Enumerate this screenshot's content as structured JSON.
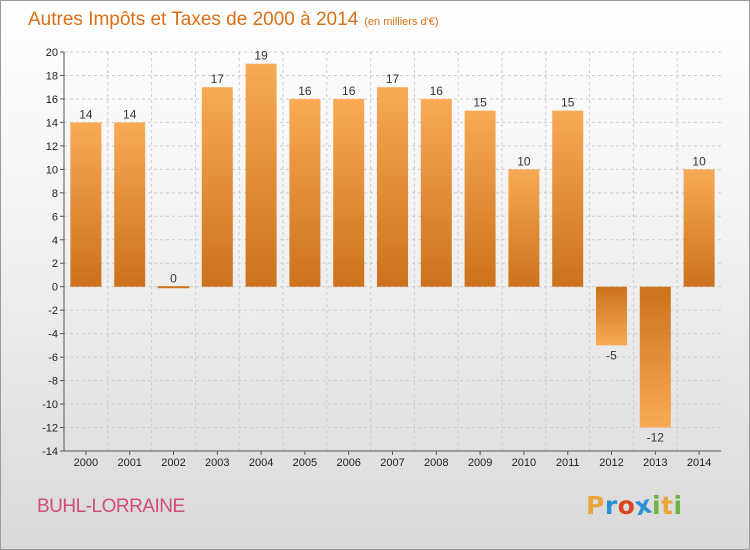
{
  "title": "Autres Impôts et Taxes de 2000 à 2014",
  "subtitle": "(en milliers d'€)",
  "commune": "BUHL-LORRAINE",
  "logo": {
    "text": "Proxiti",
    "letters": [
      {
        "ch": "P",
        "color": "#e8a53a"
      },
      {
        "ch": "r",
        "color": "#2b8fd4"
      },
      {
        "ch": "o",
        "color": "#d9431e"
      },
      {
        "ch": "x",
        "color": "#2b8fd4"
      },
      {
        "ch": "i",
        "color": "#6cb33f"
      },
      {
        "ch": "t",
        "color": "#e8a53a"
      },
      {
        "ch": "i",
        "color": "#6cb33f"
      }
    ]
  },
  "colors": {
    "bar_light": "#f8aa55",
    "bar_dark": "#cc711c",
    "title": "#d96f16",
    "commune": "#d24c78",
    "grid": "#cccccc"
  },
  "chart_data": {
    "type": "bar",
    "categories": [
      "2000",
      "2001",
      "2002",
      "2003",
      "2004",
      "2005",
      "2006",
      "2007",
      "2008",
      "2009",
      "2010",
      "2011",
      "2012",
      "2013",
      "2014"
    ],
    "values": [
      14,
      14,
      0,
      17,
      19,
      16,
      16,
      17,
      16,
      15,
      10,
      15,
      -5,
      -12,
      10
    ],
    "ylim": [
      -14,
      20
    ],
    "yticks": [
      20,
      18,
      16,
      14,
      12,
      10,
      8,
      6,
      4,
      2,
      0,
      -2,
      -4,
      -6,
      -8,
      -10,
      -12,
      -14
    ],
    "grid": true,
    "xlabel": "",
    "ylabel": ""
  }
}
